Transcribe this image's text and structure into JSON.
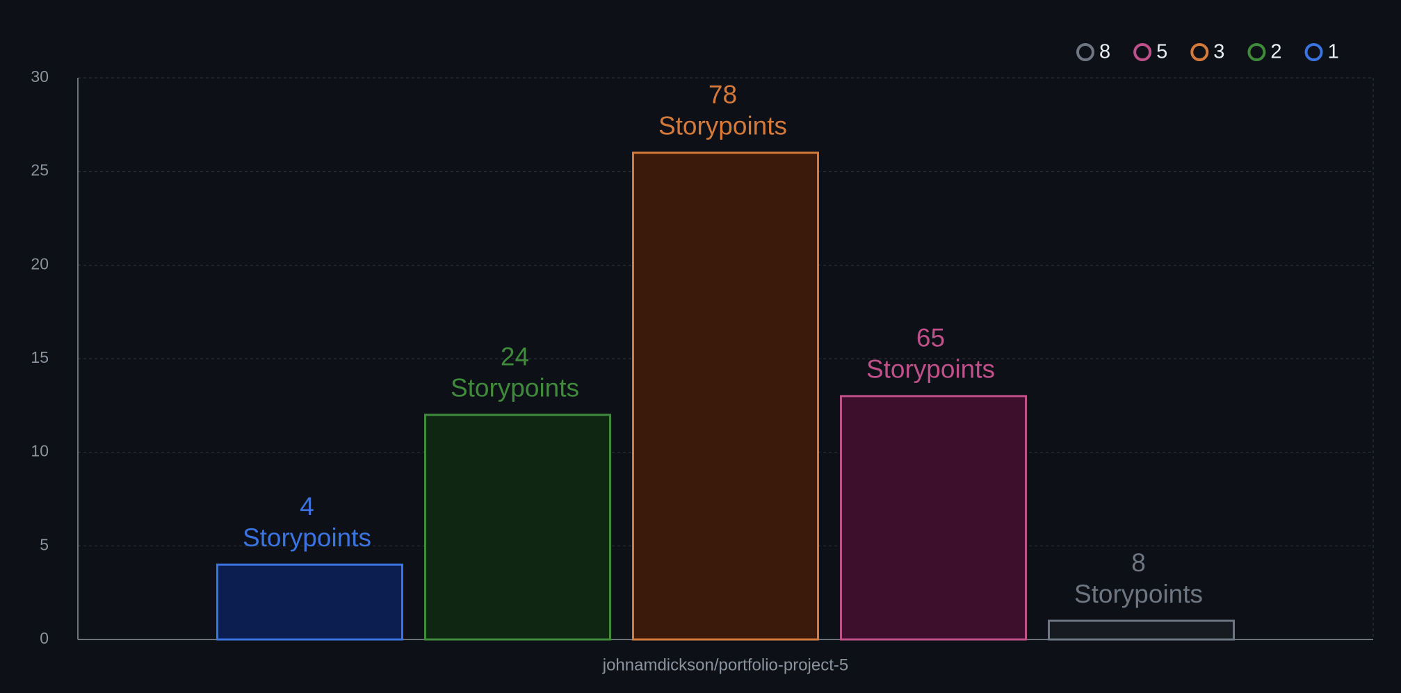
{
  "chart_data": {
    "type": "bar",
    "categories": [
      "johnamdickson/portfolio-project-5"
    ],
    "label_unit": "Storypoints",
    "series": [
      {
        "name": "1",
        "color": "#3b74e0",
        "fill": "#0c1d4f",
        "values": [
          4
        ],
        "storypoints": [
          4
        ]
      },
      {
        "name": "2",
        "color": "#3f8a3b",
        "fill": "#0f2613",
        "values": [
          12
        ],
        "storypoints": [
          24
        ]
      },
      {
        "name": "3",
        "color": "#d57a3b",
        "fill": "#3c1a0b",
        "values": [
          26
        ],
        "storypoints": [
          78
        ]
      },
      {
        "name": "5",
        "color": "#c0508a",
        "fill": "#3e0f2c",
        "values": [
          13
        ],
        "storypoints": [
          65
        ]
      },
      {
        "name": "8",
        "color": "#6e7681",
        "fill": "#161b22",
        "values": [
          1
        ],
        "storypoints": [
          8
        ]
      }
    ],
    "ylim": [
      0,
      30
    ],
    "yticks": [
      0,
      5,
      10,
      15,
      20,
      25,
      30
    ],
    "grid": true
  }
}
